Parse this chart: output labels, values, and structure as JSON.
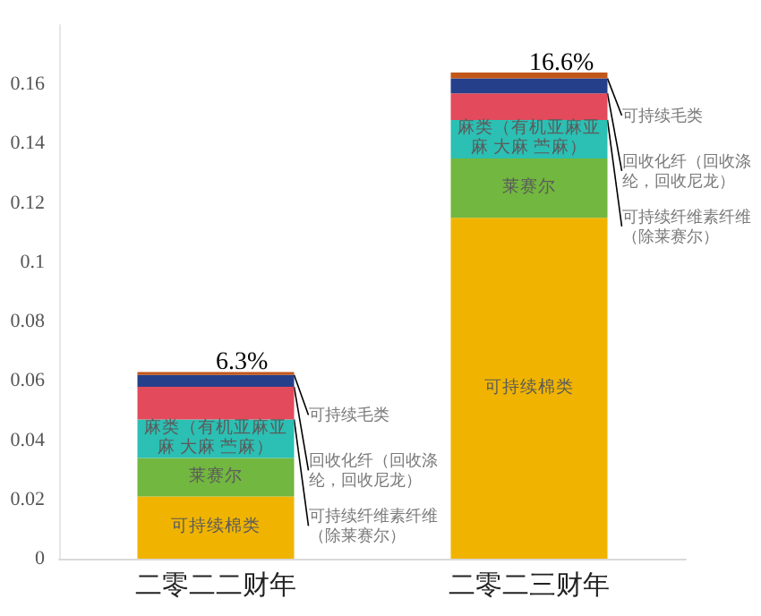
{
  "chart_data": {
    "type": "bar",
    "stacked": true,
    "categories": [
      "二零二二财年",
      "二零二三财年"
    ],
    "series": [
      {
        "name": "可持续棉类",
        "color": "#f0b400",
        "values": [
          0.021,
          0.115
        ]
      },
      {
        "name": "莱赛尔",
        "color": "#72b73f",
        "values": [
          0.013,
          0.02
        ]
      },
      {
        "name": "麻类（有机亚麻亚麻 大麻 苎麻）",
        "color": "#2cbfb3",
        "values": [
          0.013,
          0.013
        ]
      },
      {
        "name": "可持续纤维素纤维（除莱赛尔）",
        "color": "#e34a5b",
        "values": [
          0.011,
          0.009
        ]
      },
      {
        "name": "回收化纤（回收涤纶，回收尼龙）",
        "color": "#253f8a",
        "values": [
          0.004,
          0.005
        ]
      },
      {
        "name": "可持续毛类",
        "color": "#c2571a",
        "values": [
          0.001,
          0.002
        ]
      }
    ],
    "totals": [
      "6.3%",
      "16.6%"
    ],
    "ylim": [
      0,
      0.18
    ],
    "yticks": [
      0,
      0.02,
      0.04,
      0.06,
      0.08,
      0.1,
      0.12,
      0.14,
      0.16
    ],
    "grid": false,
    "legend": false
  }
}
